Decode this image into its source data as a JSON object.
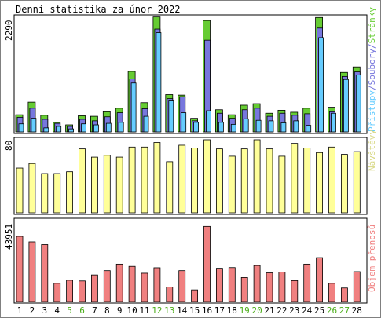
{
  "title": "Denní statistika za únor 2022",
  "colors": {
    "stranky": "#66cc33",
    "soubory": "#7777dd",
    "pristupy": "#66ccff",
    "navstevy": "#ffff99",
    "objem": "#f08080",
    "axis": "#000000",
    "day_weekday": "#000000",
    "day_weekend": "#4cae1a"
  },
  "chart_data": [
    {
      "type": "bar",
      "name": "access-chart",
      "categories": [
        "1",
        "2",
        "3",
        "4",
        "5",
        "6",
        "7",
        "8",
        "9",
        "10",
        "11",
        "12",
        "13",
        "14",
        "15",
        "16",
        "17",
        "18",
        "19",
        "20",
        "21",
        "22",
        "23",
        "24",
        "25",
        "26",
        "27",
        "28"
      ],
      "ylabel_max": "2290",
      "ylim": [
        0,
        2290
      ],
      "legend": {
        "pristupy": "Přístupy",
        "soubory": "Soubory",
        "stranky": "Stránky",
        "sep": "/"
      },
      "series": [
        {
          "key": "stranky",
          "values": [
            340,
            590,
            330,
            190,
            140,
            320,
            310,
            400,
            470,
            1200,
            580,
            2280,
            740,
            730,
            270,
            2210,
            440,
            340,
            530,
            560,
            370,
            430,
            390,
            470,
            2270,
            490,
            1180,
            1290
          ]
        },
        {
          "key": "soubory",
          "values": [
            290,
            470,
            250,
            170,
            110,
            250,
            220,
            300,
            380,
            1050,
            460,
            2040,
            660,
            700,
            220,
            1820,
            370,
            270,
            440,
            470,
            310,
            370,
            330,
            360,
            2060,
            400,
            1100,
            1190
          ]
        },
        {
          "key": "pristupy",
          "values": [
            160,
            270,
            80,
            110,
            60,
            160,
            140,
            170,
            190,
            970,
            310,
            1970,
            630,
            380,
            190,
            420,
            190,
            150,
            260,
            230,
            220,
            180,
            220,
            130,
            1870,
            370,
            1040,
            1130
          ]
        }
      ]
    },
    {
      "type": "bar",
      "name": "visits-chart",
      "categories": [
        "1",
        "2",
        "3",
        "4",
        "5",
        "6",
        "7",
        "8",
        "9",
        "10",
        "11",
        "12",
        "13",
        "14",
        "15",
        "16",
        "17",
        "18",
        "19",
        "20",
        "21",
        "22",
        "23",
        "24",
        "25",
        "26",
        "27",
        "28"
      ],
      "ylabel_max": "80",
      "ylim": [
        0,
        80
      ],
      "legend": {
        "navstevy": "Návštěvy"
      },
      "series": [
        {
          "key": "navstevy",
          "values": [
            49,
            54,
            43,
            43,
            45,
            70,
            61,
            63,
            61,
            72,
            72,
            77,
            56,
            74,
            71,
            80,
            70,
            62,
            70,
            80,
            70,
            62,
            76,
            71,
            66,
            72,
            64,
            67
          ]
        }
      ]
    },
    {
      "type": "bar",
      "name": "traffic-chart",
      "categories": [
        "1",
        "2",
        "3",
        "4",
        "5",
        "6",
        "7",
        "8",
        "9",
        "10",
        "11",
        "12",
        "13",
        "14",
        "15",
        "16",
        "17",
        "18",
        "19",
        "20",
        "21",
        "22",
        "23",
        "24",
        "25",
        "26",
        "27",
        "28"
      ],
      "ylabel_max": "43951",
      "ylim": [
        0,
        43951
      ],
      "legend": {
        "objem": "Objem přenosů"
      },
      "series": [
        {
          "key": "objem",
          "values": [
            38000,
            34800,
            33200,
            10600,
            12400,
            12000,
            15500,
            18000,
            21800,
            20500,
            16500,
            19700,
            8500,
            18000,
            6800,
            43800,
            19400,
            19800,
            14000,
            21000,
            16700,
            17200,
            12200,
            21800,
            25600,
            10600,
            7900,
            17400
          ]
        }
      ]
    }
  ],
  "days": [
    {
      "label": "1",
      "weekend": false
    },
    {
      "label": "2",
      "weekend": false
    },
    {
      "label": "3",
      "weekend": false
    },
    {
      "label": "4",
      "weekend": false
    },
    {
      "label": "5",
      "weekend": true
    },
    {
      "label": "6",
      "weekend": true
    },
    {
      "label": "7",
      "weekend": false
    },
    {
      "label": "8",
      "weekend": false
    },
    {
      "label": "9",
      "weekend": false
    },
    {
      "label": "10",
      "weekend": false
    },
    {
      "label": "11",
      "weekend": false
    },
    {
      "label": "12",
      "weekend": true
    },
    {
      "label": "13",
      "weekend": true
    },
    {
      "label": "14",
      "weekend": false
    },
    {
      "label": "15",
      "weekend": false
    },
    {
      "label": "16",
      "weekend": false
    },
    {
      "label": "17",
      "weekend": false
    },
    {
      "label": "18",
      "weekend": false
    },
    {
      "label": "19",
      "weekend": true
    },
    {
      "label": "20",
      "weekend": true
    },
    {
      "label": "21",
      "weekend": false
    },
    {
      "label": "22",
      "weekend": false
    },
    {
      "label": "23",
      "weekend": false
    },
    {
      "label": "24",
      "weekend": false
    },
    {
      "label": "25",
      "weekend": false
    },
    {
      "label": "26",
      "weekend": true
    },
    {
      "label": "27",
      "weekend": true
    },
    {
      "label": "28",
      "weekend": false
    }
  ]
}
